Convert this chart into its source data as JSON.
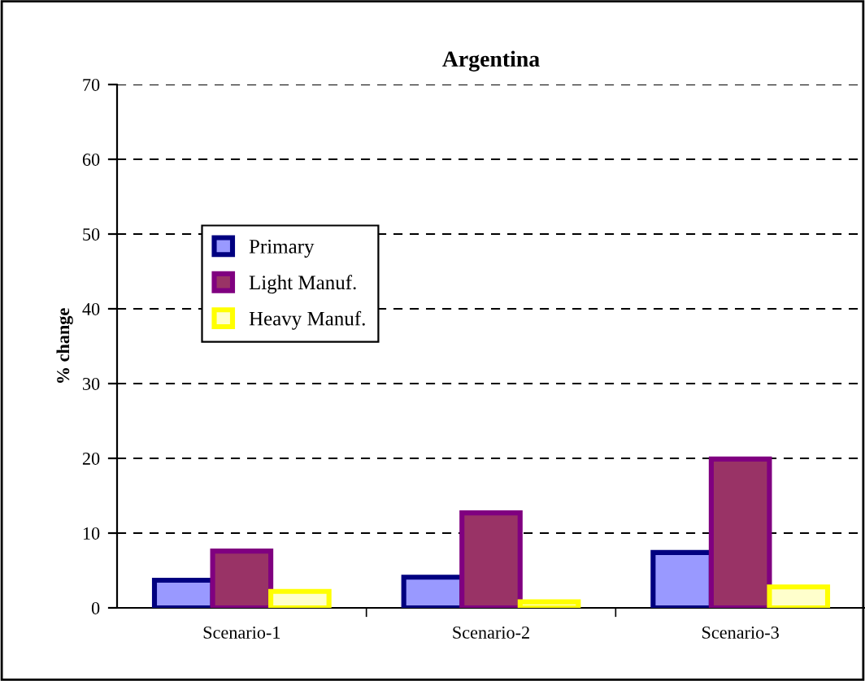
{
  "chart_data": {
    "type": "bar",
    "title": "Argentina",
    "ylabel": "% change",
    "categories": [
      "Scenario-1",
      "Scenario-2",
      "Scenario-3"
    ],
    "series": [
      {
        "name": "Primary",
        "color": "#9999ff",
        "values": [
          3.7,
          4.1,
          7.4
        ]
      },
      {
        "name": "Light Manuf.",
        "color": "#993366",
        "values": [
          7.6,
          12.7,
          19.9
        ]
      },
      {
        "name": "Heavy Manuf.",
        "color": "#ffffcc",
        "values": [
          2.2,
          0.8,
          2.8
        ]
      }
    ],
    "ylim": [
      0,
      70
    ],
    "yticks": [
      0,
      10,
      20,
      30,
      40,
      50,
      60,
      70
    ],
    "grid": "y",
    "legend": "top left"
  }
}
